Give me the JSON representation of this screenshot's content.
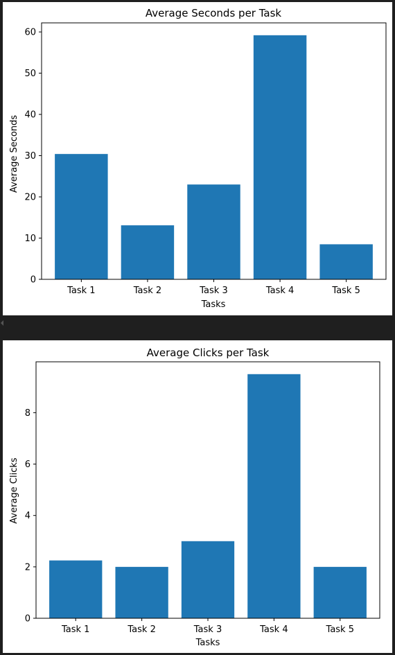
{
  "colors": {
    "bar": "#1f77b4",
    "background": "#1f1f1f",
    "panel": "#ffffff",
    "axis": "#000000"
  },
  "chart_data": [
    {
      "type": "bar",
      "title": "Average Seconds per Task",
      "xlabel": "Tasks",
      "ylabel": "Average Seconds",
      "categories": [
        "Task 1",
        "Task 2",
        "Task 3",
        "Task 4",
        "Task 5"
      ],
      "values": [
        30.4,
        13.1,
        23.0,
        59.2,
        8.5
      ],
      "ylim": [
        0,
        62.2
      ],
      "yticks": [
        0,
        10,
        20,
        30,
        40,
        50,
        60
      ],
      "grid": false,
      "legend": "none"
    },
    {
      "type": "bar",
      "title": "Average Clicks per Task",
      "xlabel": "Tasks",
      "ylabel": "Average Clicks",
      "categories": [
        "Task 1",
        "Task 2",
        "Task 3",
        "Task 4",
        "Task 5"
      ],
      "values": [
        2.25,
        2.0,
        3.0,
        9.5,
        2.0
      ],
      "ylim": [
        0,
        9.98
      ],
      "yticks": [
        0,
        2,
        4,
        6,
        8
      ],
      "grid": false,
      "legend": "none"
    }
  ]
}
